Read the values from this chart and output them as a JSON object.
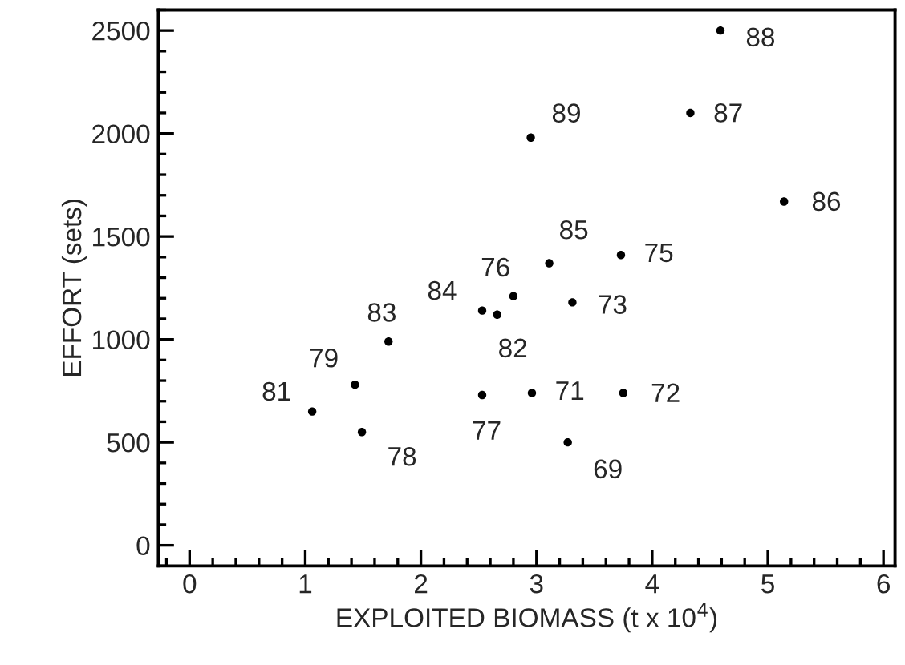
{
  "chart_data": {
    "type": "scatter",
    "xlabel": "EXPLOITED BIOMASS (t x 10$^{4}$)",
    "ylabel": "EFFORT (sets)",
    "x": [
      4.59,
      4.33,
      2.95,
      5.14,
      3.11,
      3.73,
      2.8,
      3.31,
      2.53,
      2.66,
      1.72,
      1.43,
      1.06,
      1.49,
      2.53,
      2.96,
      3.75,
      3.27
    ],
    "series": [
      {
        "color": "#000000",
        "values": [
          2500,
          2100,
          1980,
          1670,
          1370,
          1410,
          1210,
          1180,
          1140,
          1120,
          990,
          780,
          650,
          550,
          730,
          740,
          740,
          500
        ]
      }
    ],
    "annotations": [
      {
        "text": "88",
        "x": 4.59,
        "y": 2500
      },
      {
        "text": "87",
        "x": 4.33,
        "y": 2100
      },
      {
        "text": "89",
        "x": 2.95,
        "y": 1980
      },
      {
        "text": "86",
        "x": 5.14,
        "y": 1670
      },
      {
        "text": "85",
        "x": 3.11,
        "y": 1370
      },
      {
        "text": "75",
        "x": 3.73,
        "y": 1410
      },
      {
        "text": "76",
        "x": 2.8,
        "y": 1210
      },
      {
        "text": "73",
        "x": 3.31,
        "y": 1180
      },
      {
        "text": "84",
        "x": 2.53,
        "y": 1140
      },
      {
        "text": "82",
        "x": 2.66,
        "y": 1120
      },
      {
        "text": "83",
        "x": 1.72,
        "y": 990
      },
      {
        "text": "79",
        "x": 1.43,
        "y": 780
      },
      {
        "text": "81",
        "x": 1.06,
        "y": 650
      },
      {
        "text": "78",
        "x": 1.49,
        "y": 550
      },
      {
        "text": "77",
        "x": 2.53,
        "y": 730
      },
      {
        "text": "71",
        "x": 2.96,
        "y": 740
      },
      {
        "text": "72",
        "x": 3.75,
        "y": 740
      },
      {
        "text": "69",
        "x": 3.27,
        "y": 500
      }
    ],
    "xlim": [
      -0.27,
      6.1
    ],
    "xticks": [
      0,
      1,
      2,
      3,
      4,
      5,
      6
    ],
    "ylim": [
      -100,
      2600
    ],
    "yticks": [
      0,
      500,
      1000,
      1500,
      2000,
      2500
    ],
    "marker": "circle",
    "grid": false,
    "legend": false
  }
}
